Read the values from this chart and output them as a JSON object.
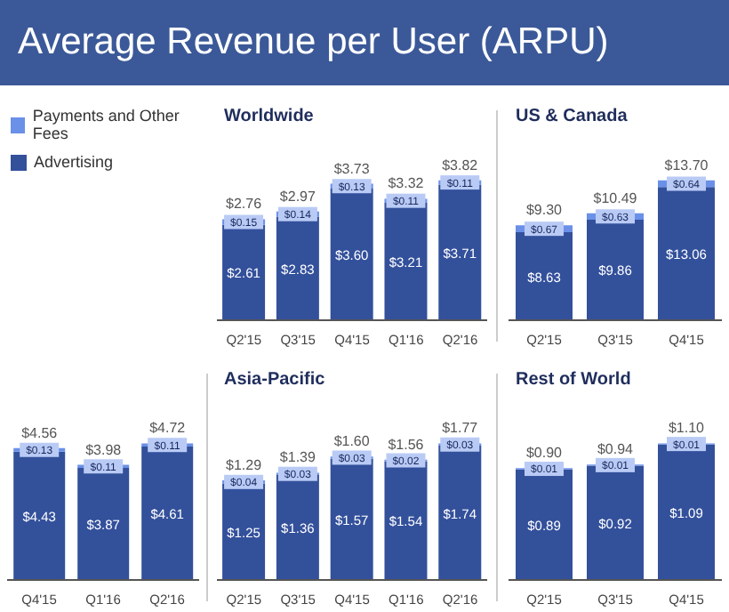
{
  "chart_data": [
    {
      "type": "other",
      "title": "Average Revenue per User (ARPU)"
    },
    {
      "type": "bar",
      "title": "Worldwide",
      "stacked": true,
      "legend": "left",
      "categories": [
        "Q2'15",
        "Q3'15",
        "Q4'15",
        "Q1'16",
        "Q2'16"
      ],
      "totals": [
        "$2.76",
        "$2.97",
        "$3.73",
        "$3.32",
        "$3.82"
      ],
      "series": [
        {
          "name": "Advertising",
          "color": "#33509b",
          "values": [
            2.61,
            2.83,
            3.6,
            3.21,
            3.71
          ],
          "value_labels": [
            "$2.61",
            "$2.83",
            "$3.60",
            "$3.21",
            "$3.71"
          ]
        },
        {
          "name": "Payments and Other Fees",
          "color": "#6a90e8",
          "values": [
            0.15,
            0.14,
            0.13,
            0.11,
            0.11
          ],
          "value_labels": [
            "$0.15",
            "$0.14",
            "$0.13",
            "$0.11",
            "$0.11"
          ]
        }
      ]
    },
    {
      "type": "bar",
      "title": "US & Canada",
      "stacked": true,
      "categories": [
        "Q2'15",
        "Q3'15",
        "Q4'15"
      ],
      "totals": [
        "$9.30",
        "$10.49",
        "$13.70"
      ],
      "series": [
        {
          "color": "#33509b",
          "values": [
            8.63,
            9.86,
            13.06
          ],
          "value_labels": [
            "$8.63",
            "$9.86",
            "$13.06"
          ]
        },
        {
          "color": "#6a90e8",
          "values": [
            0.67,
            0.63,
            0.64
          ],
          "value_labels": [
            "$0.67",
            "$0.63",
            "$0.64"
          ]
        }
      ]
    },
    {
      "type": "bar",
      "stacked": true,
      "categories": [
        "Q4'15",
        "Q1'16",
        "Q2'16"
      ],
      "totals": [
        "$4.56",
        "$3.98",
        "$4.72"
      ],
      "series": [
        {
          "color": "#33509b",
          "values": [
            4.43,
            3.87,
            4.61
          ],
          "value_labels": [
            "$4.43",
            "$3.87",
            "$4.61"
          ]
        },
        {
          "color": "#6a90e8",
          "values": [
            0.13,
            0.11,
            0.11
          ],
          "value_labels": [
            "$0.13",
            "$0.11",
            "$0.11"
          ]
        }
      ]
    },
    {
      "type": "bar",
      "title": "Asia-Pacific",
      "stacked": true,
      "categories": [
        "Q2'15",
        "Q3'15",
        "Q4'15",
        "Q1'16",
        "Q2'16"
      ],
      "totals": [
        "$1.29",
        "$1.39",
        "$1.60",
        "$1.56",
        "$1.77"
      ],
      "series": [
        {
          "color": "#33509b",
          "values": [
            1.25,
            1.36,
            1.57,
            1.54,
            1.74
          ],
          "value_labels": [
            "$1.25",
            "$1.36",
            "$1.57",
            "$1.54",
            "$1.74"
          ]
        },
        {
          "color": "#6a90e8",
          "values": [
            0.04,
            0.03,
            0.03,
            0.02,
            0.03
          ],
          "value_labels": [
            "$0.04",
            "$0.03",
            "$0.03",
            "$0.02",
            "$0.03"
          ]
        }
      ]
    },
    {
      "type": "bar",
      "title": "Rest of World",
      "stacked": true,
      "categories": [
        "Q2'15",
        "Q3'15",
        "Q4'15"
      ],
      "totals": [
        "$0.90",
        "$0.94",
        "$1.10"
      ],
      "series": [
        {
          "color": "#33509b",
          "values": [
            0.89,
            0.92,
            1.09
          ],
          "value_labels": [
            "$0.89",
            "$0.92",
            "$1.09"
          ]
        },
        {
          "color": "#6a90e8",
          "values": [
            0.01,
            0.01,
            0.01
          ],
          "value_labels": [
            "$0.01",
            "$0.01",
            "$0.01"
          ]
        }
      ]
    }
  ]
}
